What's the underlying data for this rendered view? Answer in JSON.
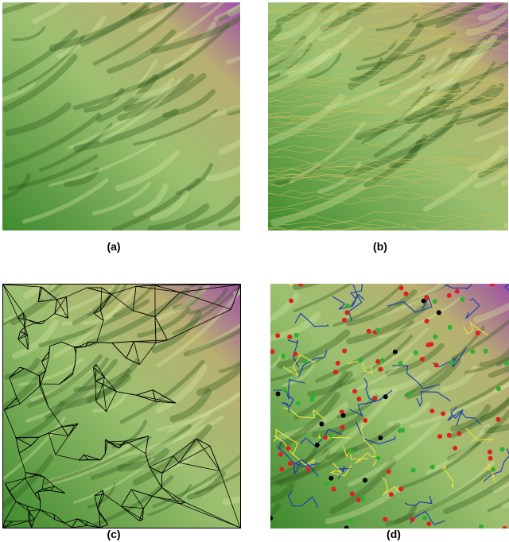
{
  "panels": [
    {
      "id": "a",
      "label": "(a)",
      "overlay": "none"
    },
    {
      "id": "b",
      "label": "(b)",
      "overlay": "contours"
    },
    {
      "id": "c",
      "label": "(c)",
      "overlay": "triangulation"
    },
    {
      "id": "d",
      "label": "(d)",
      "overlay": "drainage-network"
    }
  ],
  "colors": {
    "terrain_low": "#3f8a2e",
    "terrain_mid": "#9bc070",
    "terrain_high": "#a050a8",
    "contour": "#c8c060",
    "mesh": "#000000",
    "channel": "#1f3fb0",
    "ridge": "#e8e040",
    "point_red": "#e02020",
    "point_green": "#30b030",
    "point_black": "#000000"
  }
}
